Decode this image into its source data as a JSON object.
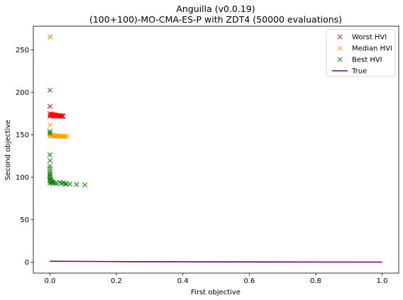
{
  "chart_data": {
    "type": "scatter",
    "title": "Anguilla (v0.0.19)",
    "subtitle": "(100+100)-MO-CMA-ES-P with ZDT4 (50000 evaluations)",
    "xlabel": "First objective",
    "ylabel": "Second objective",
    "xlim": [
      -0.05,
      1.05
    ],
    "ylim": [
      -13,
      278
    ],
    "x_ticks": [
      "0.0",
      "0.2",
      "0.4",
      "0.6",
      "0.8",
      "1.0"
    ],
    "y_ticks": [
      "0",
      "50",
      "100",
      "150",
      "200",
      "250"
    ],
    "x_tick_values": [
      0,
      0.2,
      0.4,
      0.6,
      0.8,
      1.0
    ],
    "y_tick_values": [
      0,
      50,
      100,
      150,
      200,
      250
    ],
    "grid": false,
    "legend_position": "top-right",
    "series": [
      {
        "name": "Worst HVI",
        "marker": "x",
        "color": "#ff0000",
        "points": [
          [
            0.0,
            183.5
          ],
          [
            0.0,
            175.0
          ],
          [
            0.002,
            174.2
          ],
          [
            0.004,
            173.6
          ],
          [
            0.006,
            174.0
          ],
          [
            0.008,
            173.3
          ],
          [
            0.01,
            173.8
          ],
          [
            0.012,
            172.9
          ],
          [
            0.014,
            173.4
          ],
          [
            0.016,
            172.6
          ],
          [
            0.018,
            173.1
          ],
          [
            0.02,
            172.4
          ],
          [
            0.022,
            172.9
          ],
          [
            0.024,
            172.2
          ],
          [
            0.026,
            172.7
          ],
          [
            0.028,
            172.1
          ],
          [
            0.03,
            172.5
          ],
          [
            0.032,
            171.9
          ],
          [
            0.034,
            172.3
          ],
          [
            0.036,
            171.9
          ],
          [
            0.038,
            172.2
          ],
          [
            0.04,
            171.9
          ],
          [
            0.0,
            172.5
          ],
          [
            0.003,
            172.0
          ],
          [
            0.009,
            172.0
          ]
        ]
      },
      {
        "name": "Median HVI",
        "marker": "x",
        "color": "#ffa500",
        "points": [
          [
            0.0,
            265.5
          ],
          [
            0.002,
            265.0
          ],
          [
            0.0,
            161.5
          ],
          [
            0.0,
            152.5
          ],
          [
            0.0,
            150.0
          ],
          [
            0.003,
            149.6
          ],
          [
            0.006,
            149.3
          ],
          [
            0.009,
            149.1
          ],
          [
            0.012,
            149.0
          ],
          [
            0.015,
            148.8
          ],
          [
            0.018,
            148.7
          ],
          [
            0.021,
            148.6
          ],
          [
            0.024,
            148.5
          ],
          [
            0.027,
            148.4
          ],
          [
            0.03,
            148.3
          ],
          [
            0.033,
            148.3
          ],
          [
            0.036,
            148.2
          ],
          [
            0.039,
            148.1
          ],
          [
            0.042,
            148.1
          ],
          [
            0.046,
            148.0
          ],
          [
            0.052,
            148.0
          ],
          [
            0.005,
            148.5
          ],
          [
            0.001,
            149.2
          ]
        ]
      },
      {
        "name": "Best HVI",
        "marker": "x",
        "color": "#008000",
        "points": [
          [
            0.0,
            202.5
          ],
          [
            0.0,
            154.0
          ],
          [
            0.0,
            151.5
          ],
          [
            0.0,
            126.5
          ],
          [
            0.0,
            119.5
          ],
          [
            0.0,
            113.0
          ],
          [
            0.0,
            110.0
          ],
          [
            0.0,
            106.5
          ],
          [
            0.0,
            104.0
          ],
          [
            0.0,
            102.0
          ],
          [
            0.0,
            100.0
          ],
          [
            0.0,
            98.0
          ],
          [
            0.0,
            96.5
          ],
          [
            0.002,
            95.5
          ],
          [
            0.004,
            94.8
          ],
          [
            0.006,
            94.2
          ],
          [
            0.008,
            93.6
          ],
          [
            0.01,
            93.3
          ],
          [
            0.015,
            93.0
          ],
          [
            0.02,
            92.8
          ],
          [
            0.03,
            94.0
          ],
          [
            0.035,
            92.6
          ],
          [
            0.04,
            93.5
          ],
          [
            0.045,
            92.3
          ],
          [
            0.05,
            92.1
          ],
          [
            0.06,
            91.9
          ],
          [
            0.08,
            91.5
          ],
          [
            0.105,
            91.0
          ],
          [
            0.0,
            93.0
          ],
          [
            0.002,
            97.0
          ]
        ]
      },
      {
        "name": "True",
        "marker": "line",
        "color": "#800080",
        "points": [
          [
            0.0,
            1.0
          ],
          [
            0.25,
            0.5
          ],
          [
            0.5,
            0.29
          ],
          [
            0.75,
            0.13
          ],
          [
            1.0,
            0.0
          ]
        ]
      }
    ]
  }
}
